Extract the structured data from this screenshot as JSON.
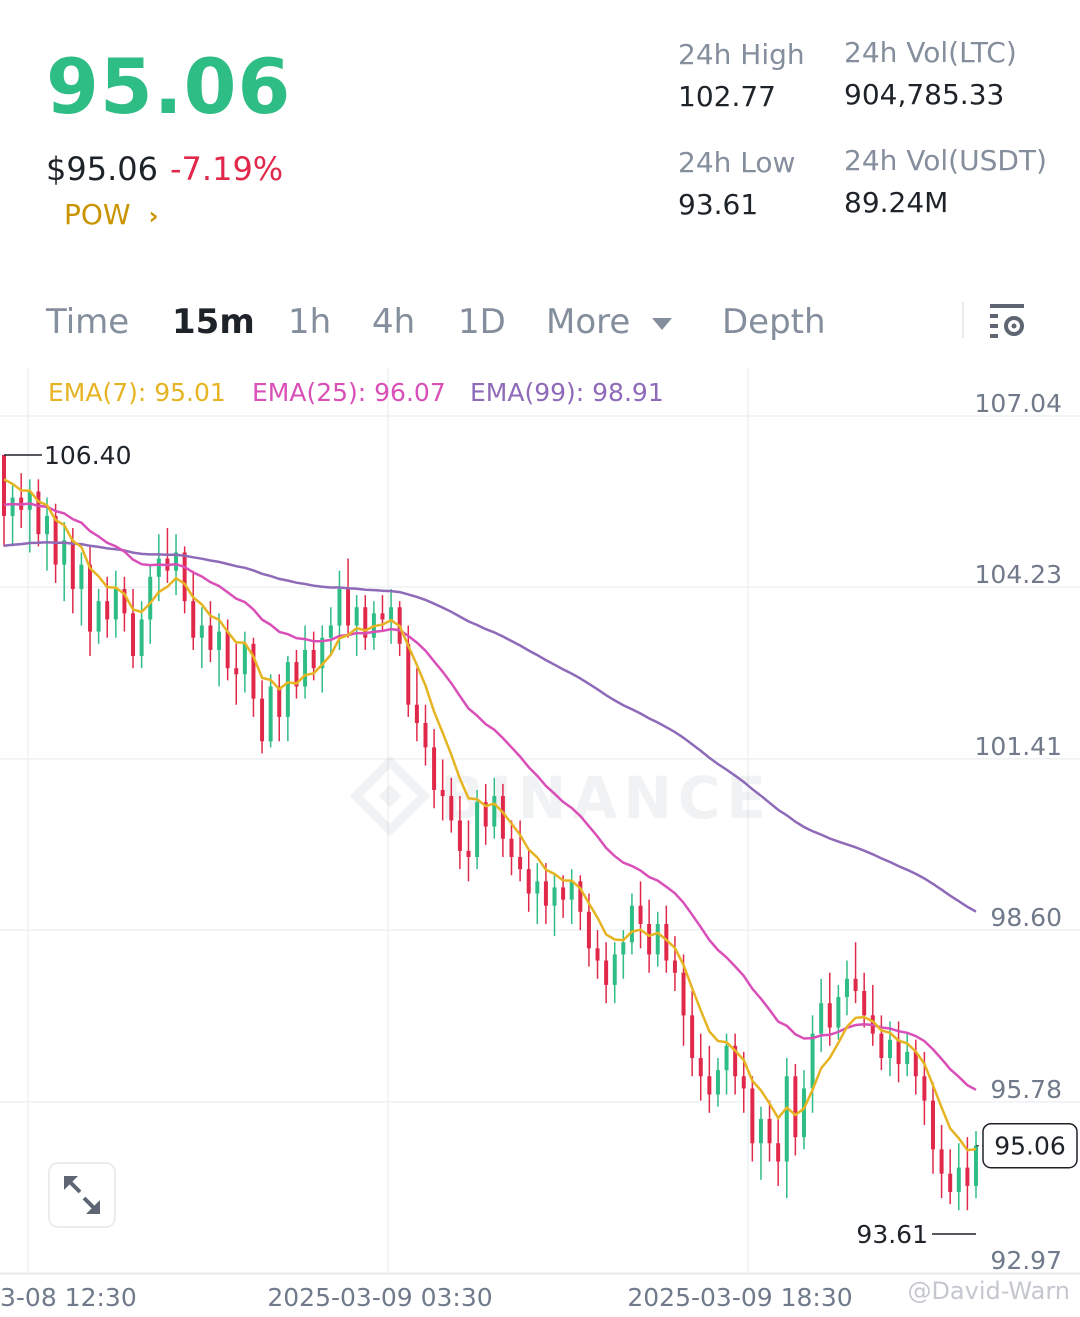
{
  "header": {
    "price": "95.06",
    "price_usd": "$95.06",
    "change_pct": "-7.19%",
    "tag": "POW",
    "tag_chevron": "›"
  },
  "stats": {
    "high_label": "24h High",
    "high_value": "102.77",
    "low_label": "24h Low",
    "low_value": "93.61",
    "vol_base_label": "24h Vol(LTC)",
    "vol_base_value": "904,785.33",
    "vol_quote_label": "24h Vol(USDT)",
    "vol_quote_value": "89.24M"
  },
  "tabs": [
    {
      "label": "Time",
      "active": false
    },
    {
      "label": "15m",
      "active": true
    },
    {
      "label": "1h",
      "active": false
    },
    {
      "label": "4h",
      "active": false
    },
    {
      "label": "1D",
      "active": false
    },
    {
      "label": "More",
      "active": false
    },
    {
      "label": "Depth",
      "active": false
    }
  ],
  "icons": {
    "more_caret": "caret-down-icon",
    "settings": "chart-settings-icon",
    "expand": "expand-icon"
  },
  "colors": {
    "up": "#2ebd85",
    "down": "#e0294a",
    "ema7": "#e6b422",
    "ema25": "#d94fb8",
    "ema99": "#8e6ab8",
    "brand": "#c99400"
  },
  "legend": {
    "ema7": "EMA(7): 95.01",
    "ema25": "EMA(25): 96.07",
    "ema99": "EMA(99): 98.91"
  },
  "watermark": {
    "brand": "BINANCE",
    "user": "@David-Warn"
  },
  "chart_data": {
    "type": "candlestick",
    "interval": "15m",
    "y_ticks": [
      107.04,
      104.23,
      101.41,
      98.6,
      95.78,
      92.97
    ],
    "y_range": [
      92.97,
      107.04
    ],
    "x_ticks": [
      "3-08 12:30",
      "2025-03-09 03:30",
      "2025-03-09 18:30"
    ],
    "annotations": {
      "period_high": "106.40",
      "period_low": "93.61",
      "last_price": "95.06"
    },
    "candles_ohlc": [
      [
        106.4,
        106.4,
        104.9,
        105.4
      ],
      [
        105.4,
        105.9,
        104.9,
        105.7
      ],
      [
        105.7,
        106.1,
        105.2,
        105.5
      ],
      [
        105.5,
        106.0,
        104.8,
        105.8
      ],
      [
        105.8,
        106.0,
        104.9,
        105.1
      ],
      [
        105.1,
        105.7,
        104.5,
        105.4
      ],
      [
        105.4,
        105.6,
        104.3,
        104.6
      ],
      [
        104.6,
        105.3,
        104.0,
        105.0
      ],
      [
        105.0,
        105.2,
        103.8,
        104.2
      ],
      [
        104.2,
        104.8,
        103.6,
        104.6
      ],
      [
        104.6,
        104.9,
        103.1,
        103.5
      ],
      [
        103.5,
        104.2,
        103.3,
        104.0
      ],
      [
        104.0,
        104.4,
        103.4,
        103.7
      ],
      [
        103.7,
        104.5,
        103.4,
        104.2
      ],
      [
        104.2,
        104.4,
        103.5,
        103.8
      ],
      [
        103.8,
        104.2,
        102.9,
        103.1
      ],
      [
        103.1,
        104.0,
        102.9,
        103.7
      ],
      [
        103.7,
        104.6,
        103.3,
        104.4
      ],
      [
        104.4,
        105.1,
        104.0,
        104.7
      ],
      [
        104.7,
        105.2,
        104.3,
        104.5
      ],
      [
        104.5,
        105.1,
        104.1,
        104.8
      ],
      [
        104.8,
        104.9,
        103.8,
        104.0
      ],
      [
        104.0,
        104.5,
        103.2,
        103.4
      ],
      [
        103.4,
        103.9,
        102.9,
        103.6
      ],
      [
        103.6,
        104.0,
        103.0,
        103.2
      ],
      [
        103.2,
        103.8,
        102.6,
        103.5
      ],
      [
        103.5,
        103.7,
        102.7,
        102.9
      ],
      [
        102.9,
        103.3,
        102.3,
        102.8
      ],
      [
        102.8,
        103.5,
        102.5,
        103.3
      ],
      [
        103.3,
        103.4,
        102.1,
        102.4
      ],
      [
        102.4,
        102.7,
        101.5,
        101.7
      ],
      [
        101.7,
        102.8,
        101.6,
        102.6
      ],
      [
        102.6,
        102.8,
        101.7,
        102.1
      ],
      [
        102.1,
        103.1,
        101.7,
        103.0
      ],
      [
        103.0,
        103.2,
        102.4,
        102.6
      ],
      [
        102.6,
        103.6,
        102.4,
        103.2
      ],
      [
        103.2,
        103.5,
        102.7,
        102.9
      ],
      [
        102.9,
        103.6,
        102.5,
        103.4
      ],
      [
        103.4,
        103.9,
        103.1,
        103.6
      ],
      [
        103.6,
        104.5,
        103.2,
        104.2
      ],
      [
        104.2,
        104.7,
        103.4,
        103.6
      ],
      [
        103.6,
        104.1,
        103.1,
        103.9
      ],
      [
        103.9,
        104.1,
        103.2,
        103.4
      ],
      [
        103.4,
        104.0,
        103.2,
        103.8
      ],
      [
        103.8,
        104.1,
        103.5,
        103.7
      ],
      [
        103.7,
        104.2,
        103.3,
        103.9
      ],
      [
        103.9,
        104.0,
        103.1,
        103.3
      ],
      [
        103.3,
        103.6,
        102.1,
        102.3
      ],
      [
        102.3,
        102.9,
        101.7,
        102.0
      ],
      [
        102.0,
        102.3,
        101.3,
        101.6
      ],
      [
        101.6,
        101.9,
        100.6,
        100.9
      ],
      [
        100.9,
        101.4,
        100.4,
        100.8
      ],
      [
        100.8,
        101.1,
        100.2,
        100.4
      ],
      [
        100.4,
        100.8,
        99.6,
        99.9
      ],
      [
        99.9,
        100.4,
        99.4,
        99.8
      ],
      [
        99.8,
        100.9,
        99.6,
        100.7
      ],
      [
        100.7,
        101.0,
        100.0,
        100.3
      ],
      [
        100.3,
        101.1,
        100.1,
        100.8
      ],
      [
        100.8,
        101.0,
        99.8,
        100.1
      ],
      [
        100.1,
        100.4,
        99.5,
        99.8
      ],
      [
        99.8,
        100.4,
        99.4,
        99.6
      ],
      [
        99.6,
        99.9,
        98.9,
        99.2
      ],
      [
        99.2,
        99.7,
        98.7,
        99.4
      ],
      [
        99.4,
        99.7,
        98.7,
        99.0
      ],
      [
        99.0,
        99.5,
        98.5,
        99.3
      ],
      [
        99.3,
        99.5,
        98.8,
        99.1
      ],
      [
        99.1,
        99.6,
        98.7,
        99.4
      ],
      [
        99.4,
        99.5,
        98.6,
        98.9
      ],
      [
        98.9,
        99.2,
        98.0,
        98.3
      ],
      [
        98.3,
        98.6,
        97.8,
        98.1
      ],
      [
        98.1,
        98.4,
        97.4,
        97.7
      ],
      [
        97.7,
        98.4,
        97.4,
        98.2
      ],
      [
        98.2,
        98.6,
        97.8,
        98.4
      ],
      [
        98.4,
        99.2,
        98.2,
        99.0
      ],
      [
        99.0,
        99.4,
        98.3,
        98.7
      ],
      [
        98.7,
        99.1,
        97.9,
        98.2
      ],
      [
        98.2,
        98.9,
        98.0,
        98.7
      ],
      [
        98.7,
        99.0,
        97.9,
        98.1
      ],
      [
        98.1,
        98.5,
        97.6,
        97.9
      ],
      [
        97.9,
        98.2,
        96.7,
        97.2
      ],
      [
        97.2,
        97.6,
        96.2,
        96.5
      ],
      [
        96.5,
        96.9,
        95.8,
        96.2
      ],
      [
        96.2,
        96.7,
        95.6,
        95.9
      ],
      [
        95.9,
        96.5,
        95.7,
        96.3
      ],
      [
        96.3,
        96.9,
        95.9,
        96.7
      ],
      [
        96.7,
        96.9,
        95.9,
        96.2
      ],
      [
        96.2,
        96.6,
        95.6,
        96.0
      ],
      [
        96.0,
        96.2,
        94.8,
        95.1
      ],
      [
        95.1,
        95.7,
        94.5,
        95.5
      ],
      [
        95.5,
        95.8,
        94.8,
        95.1
      ],
      [
        95.1,
        95.5,
        94.4,
        94.8
      ],
      [
        94.8,
        96.5,
        94.2,
        96.2
      ],
      [
        96.2,
        96.4,
        94.9,
        95.2
      ],
      [
        95.2,
        96.3,
        95.0,
        96.0
      ],
      [
        96.0,
        97.2,
        95.6,
        96.9
      ],
      [
        96.9,
        97.8,
        96.6,
        97.4
      ],
      [
        97.4,
        97.9,
        96.7,
        97.0
      ],
      [
        97.0,
        97.7,
        96.8,
        97.5
      ],
      [
        97.5,
        98.1,
        97.2,
        97.8
      ],
      [
        97.8,
        98.4,
        97.4,
        97.6
      ],
      [
        97.6,
        97.9,
        97.0,
        97.2
      ],
      [
        97.2,
        97.7,
        96.7,
        96.9
      ],
      [
        96.9,
        97.2,
        96.3,
        96.5
      ],
      [
        96.5,
        97.1,
        96.2,
        96.8
      ],
      [
        96.8,
        97.1,
        96.1,
        96.4
      ],
      [
        96.4,
        96.9,
        96.2,
        96.6
      ],
      [
        96.6,
        96.8,
        95.9,
        96.2
      ],
      [
        96.2,
        96.6,
        95.4,
        95.8
      ],
      [
        95.8,
        96.1,
        94.6,
        95.0
      ],
      [
        95.0,
        95.4,
        94.2,
        94.6
      ],
      [
        94.6,
        95.0,
        94.1,
        94.3
      ],
      [
        94.3,
        95.1,
        94.0,
        94.7
      ],
      [
        94.7,
        95.2,
        94.0,
        94.4
      ],
      [
        94.4,
        95.3,
        94.2,
        95.06
      ]
    ]
  }
}
